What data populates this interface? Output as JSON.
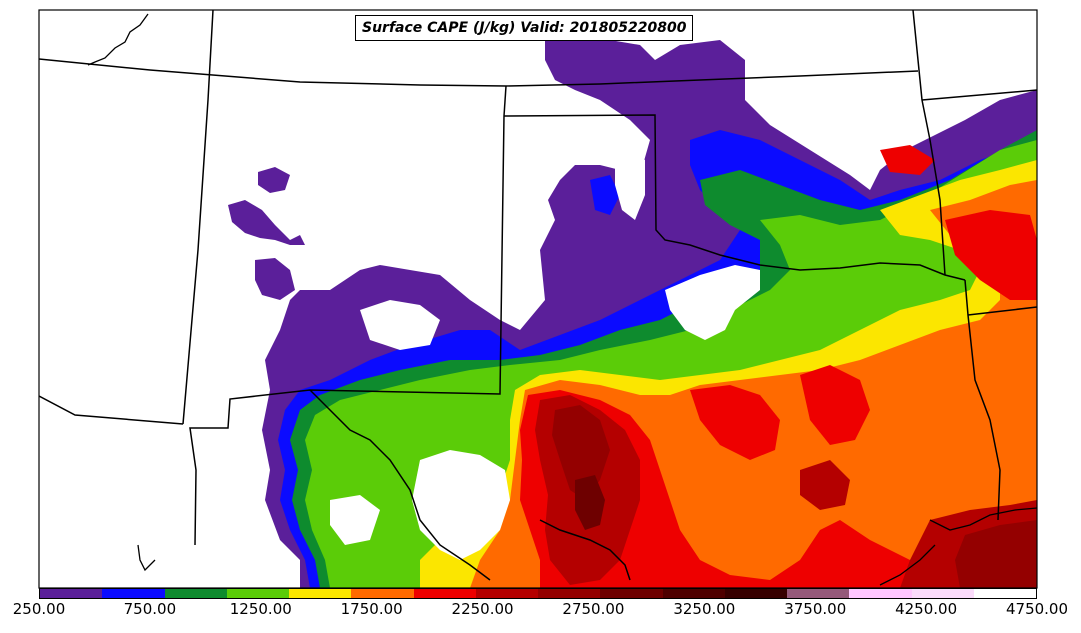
{
  "title": "Surface CAPE (J/kg) Valid: 201805220800",
  "colorbar": {
    "colors": [
      "#5b1f9a",
      "#0b0bff",
      "#0e8b2e",
      "#5bcc08",
      "#fbe600",
      "#ff6a00",
      "#ee0000",
      "#b40000",
      "#940000",
      "#6e0000",
      "#4e0000",
      "#360000",
      "#95597a",
      "#ffc6ff",
      "#fbdbfb",
      "#ffffff"
    ],
    "tick_labels": [
      "250.00",
      "750.00",
      "1250.00",
      "1750.00",
      "2250.00",
      "2750.00",
      "3250.00",
      "3750.00",
      "4250.00",
      "4750.00"
    ]
  },
  "icons": [
    "map-state-boundaries",
    "map-coastline"
  ]
}
